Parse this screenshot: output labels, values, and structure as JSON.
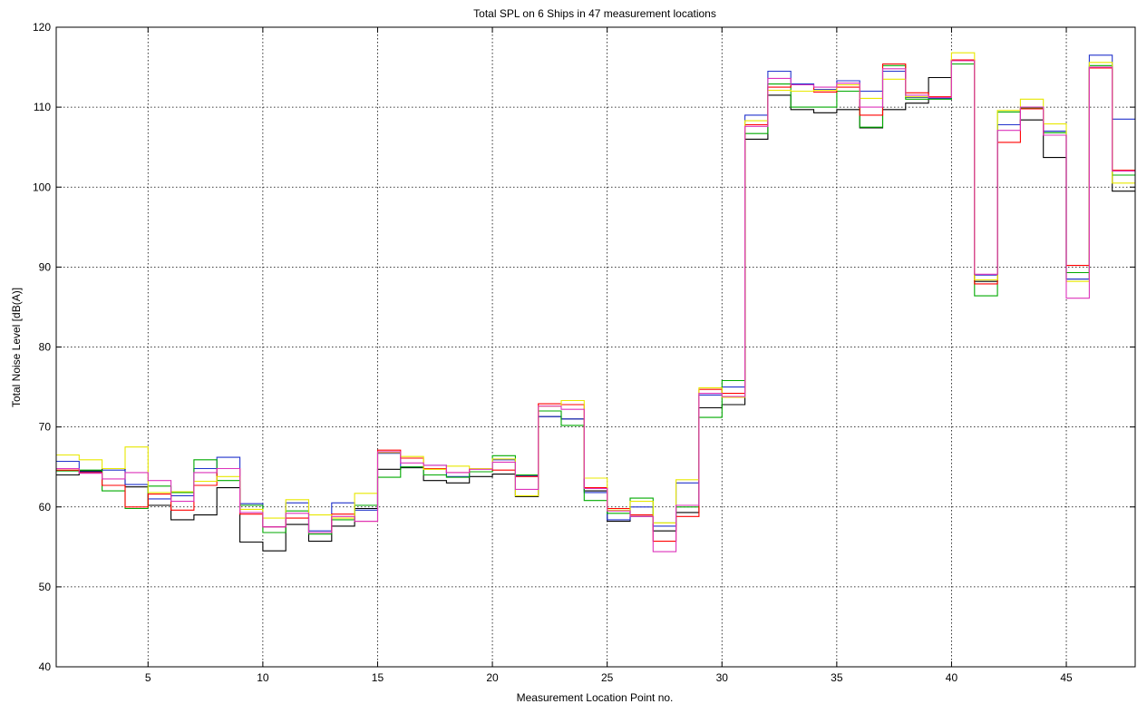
{
  "chart_data": {
    "type": "line",
    "step": "post",
    "title": "Total SPL on 6 Ships in 47 measurement locations",
    "xlabel": "Measurement Location Point no.",
    "ylabel": "Total Noise Level [dB(A)]",
    "xlim": [
      1,
      48
    ],
    "ylim": [
      40,
      120
    ],
    "xticks": [
      5,
      10,
      15,
      20,
      25,
      30,
      35,
      40,
      45
    ],
    "yticks": [
      40,
      50,
      60,
      70,
      80,
      90,
      100,
      110,
      120
    ],
    "grid": true,
    "grid_style": "dotted",
    "x": [
      1,
      2,
      3,
      4,
      5,
      6,
      7,
      8,
      9,
      10,
      11,
      12,
      13,
      14,
      15,
      16,
      17,
      18,
      19,
      20,
      21,
      22,
      23,
      24,
      25,
      26,
      27,
      28,
      29,
      30,
      31,
      32,
      33,
      34,
      35,
      36,
      37,
      38,
      39,
      40,
      41,
      42,
      43,
      44,
      45,
      46,
      47
    ],
    "series": [
      {
        "color": "#000000",
        "values": [
          64.0,
          64.5,
          64.8,
          62.5,
          60.2,
          58.4,
          59.0,
          62.4,
          55.6,
          54.5,
          57.8,
          55.7,
          57.6,
          59.8,
          64.7,
          64.9,
          63.3,
          63.0,
          63.8,
          64.1,
          61.3,
          71.3,
          71.0,
          62.0,
          58.2,
          58.8,
          57.0,
          59.3,
          72.4,
          72.8,
          106.0,
          111.5,
          109.7,
          109.3,
          109.7,
          107.4,
          109.7,
          110.5,
          113.7,
          115.9,
          88.2,
          107.8,
          108.4,
          103.7,
          88.5,
          114.9,
          99.5
        ]
      },
      {
        "color": "#2233cc",
        "values": [
          65.7,
          64.4,
          64.6,
          62.8,
          61.0,
          61.4,
          64.8,
          66.2,
          60.4,
          57.5,
          60.5,
          57.0,
          60.5,
          59.6,
          66.7,
          65.0,
          65.2,
          63.8,
          64.4,
          65.9,
          63.9,
          71.3,
          71.0,
          61.8,
          58.4,
          60.0,
          57.6,
          63.0,
          74.0,
          75.0,
          109.0,
          114.5,
          112.9,
          112.2,
          113.3,
          112.0,
          114.5,
          111.2,
          111.1,
          115.8,
          89.0,
          107.8,
          110.0,
          107.0,
          88.5,
          116.5,
          108.5
        ]
      },
      {
        "color": "#00aa00",
        "values": [
          64.5,
          64.6,
          62.0,
          59.8,
          62.6,
          61.8,
          65.9,
          63.3,
          60.2,
          56.8,
          59.5,
          56.6,
          58.4,
          60.2,
          63.7,
          65.0,
          64.0,
          63.7,
          64.4,
          66.4,
          64.0,
          72.0,
          70.2,
          60.8,
          59.2,
          61.1,
          58.0,
          60.0,
          71.2,
          75.8,
          106.7,
          112.9,
          110.0,
          110.0,
          112.0,
          107.5,
          115.2,
          111.0,
          111.0,
          115.4,
          86.4,
          109.4,
          109.9,
          106.8,
          89.3,
          115.2,
          101.5
        ]
      },
      {
        "color": "#ff0000",
        "values": [
          64.6,
          64.3,
          62.7,
          60.0,
          61.6,
          59.6,
          62.7,
          64.8,
          59.1,
          57.5,
          58.6,
          56.8,
          59.1,
          58.2,
          67.1,
          66.1,
          64.8,
          64.3,
          64.8,
          64.6,
          63.8,
          72.9,
          72.8,
          62.4,
          59.8,
          59.0,
          55.7,
          58.8,
          74.7,
          74.2,
          107.8,
          112.5,
          112.8,
          111.9,
          112.5,
          109.0,
          115.4,
          111.8,
          111.3,
          115.9,
          87.9,
          105.6,
          109.8,
          106.5,
          90.2,
          114.9,
          102.1
        ]
      },
      {
        "color": "#e8e800",
        "values": [
          66.5,
          65.9,
          64.8,
          67.5,
          61.8,
          61.9,
          63.2,
          63.8,
          59.7,
          58.6,
          60.9,
          59.0,
          58.6,
          61.7,
          66.8,
          66.3,
          64.7,
          65.1,
          64.8,
          66.0,
          61.4,
          72.6,
          73.3,
          63.6,
          59.6,
          60.7,
          58.0,
          63.4,
          74.9,
          73.7,
          108.3,
          112.1,
          112.0,
          112.1,
          112.8,
          111.1,
          113.5,
          111.3,
          111.2,
          116.8,
          88.4,
          109.6,
          111.0,
          107.9,
          88.2,
          115.6,
          100.5
        ]
      },
      {
        "color": "#dd33bb",
        "values": [
          64.8,
          64.2,
          63.5,
          64.3,
          63.3,
          60.7,
          64.3,
          64.8,
          59.3,
          57.5,
          59.2,
          56.8,
          58.8,
          58.2,
          66.9,
          65.5,
          65.2,
          64.3,
          64.7,
          65.6,
          62.2,
          72.6,
          72.2,
          62.3,
          59.5,
          58.8,
          54.4,
          60.2,
          74.2,
          73.8,
          107.6,
          113.6,
          112.8,
          112.5,
          113.0,
          110.0,
          114.8,
          111.5,
          111.2,
          115.8,
          89.1,
          107.1,
          110.0,
          106.5,
          86.1,
          115.0,
          102.0
        ]
      }
    ]
  }
}
